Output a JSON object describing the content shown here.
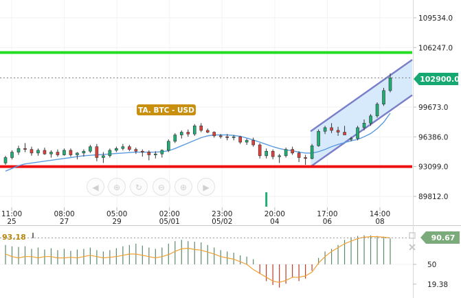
{
  "instrument_title": "TA.  BTC - USD",
  "price_tag": "102900.0",
  "osc_value": "93.18",
  "osc_tag": "90.67",
  "colors": {
    "up": "#1fae74",
    "down": "#e0413a",
    "ma": "#5a9be0",
    "resistance": "#22dd22",
    "support": "#ee1111",
    "channel_fill": "#cfe6fb",
    "channel_line": "#7a7fc9",
    "osc_line": "#f0a030",
    "title_bg": "#c9900f",
    "tag_bg": "#16a871",
    "osc_tag_bg": "#7bab7b"
  },
  "nav_icons": [
    "arrow-left-icon",
    "zoom-in-icon",
    "zoom-reset-icon",
    "zoom-out-icon",
    "zoom-in-icon",
    "arrow-right-icon"
  ],
  "chart_data": [
    {
      "type": "candlestick",
      "price_axis_ticks": [
        109534.0,
        106247.0,
        99673.0,
        96386.0,
        93099.0,
        89812.0
      ],
      "ylim": [
        88600,
        111500
      ],
      "time_axis": [
        {
          "time": "11:00",
          "date": "25"
        },
        {
          "time": "08:00",
          "date": "27"
        },
        {
          "time": "05:00",
          "date": "29"
        },
        {
          "time": "02:00",
          "date": "05/01"
        },
        {
          "time": "23:00",
          "date": "05/02"
        },
        {
          "time": "20:00",
          "date": "04"
        },
        {
          "time": "17:00",
          "date": "06"
        },
        {
          "time": "14:00",
          "date": "08"
        }
      ],
      "candles": [
        [
          93500,
          94300,
          93300,
          94100
        ],
        [
          94100,
          94900,
          93900,
          94700
        ],
        [
          94700,
          95400,
          94400,
          95100
        ],
        [
          95100,
          95700,
          94700,
          95000
        ],
        [
          95000,
          95300,
          94300,
          94600
        ],
        [
          94600,
          95100,
          94300,
          94900
        ],
        [
          94900,
          95200,
          94400,
          94500
        ],
        [
          94500,
          94900,
          94100,
          94700
        ],
        [
          94700,
          95000,
          94200,
          94400
        ],
        [
          94400,
          95100,
          94300,
          94900
        ],
        [
          94900,
          95100,
          94200,
          94400
        ],
        [
          94400,
          94700,
          93900,
          94600
        ],
        [
          94600,
          95000,
          94200,
          94800
        ],
        [
          94800,
          95500,
          94600,
          95300
        ],
        [
          95300,
          95600,
          93700,
          94100
        ],
        [
          94100,
          94700,
          93500,
          94300
        ],
        [
          94300,
          95100,
          94100,
          94900
        ],
        [
          94900,
          95300,
          94700,
          95100
        ],
        [
          95100,
          95600,
          94900,
          95300
        ],
        [
          95300,
          95500,
          94800,
          95000
        ],
        [
          95000,
          95200,
          94500,
          94800
        ],
        [
          94800,
          95000,
          94200,
          94700
        ],
        [
          94700,
          94900,
          93800,
          94400
        ],
        [
          94400,
          94800,
          94000,
          94500
        ],
        [
          94500,
          95000,
          94100,
          94900
        ],
        [
          94900,
          96100,
          94700,
          95900
        ],
        [
          95900,
          96800,
          95700,
          96600
        ],
        [
          96600,
          97100,
          96200,
          96900
        ],
        [
          96900,
          97200,
          96400,
          96700
        ],
        [
          96700,
          97800,
          96500,
          97600
        ],
        [
          97600,
          97900,
          96900,
          97100
        ],
        [
          97100,
          97300,
          96800,
          96900
        ],
        [
          96900,
          97000,
          96300,
          96500
        ],
        [
          96500,
          96700,
          96200,
          96400
        ],
        [
          96400,
          96700,
          96000,
          96300
        ],
        [
          96300,
          96600,
          96000,
          96400
        ],
        [
          96400,
          96500,
          95600,
          95800
        ],
        [
          95800,
          96200,
          95500,
          96000
        ],
        [
          96000,
          96300,
          95300,
          95500
        ],
        [
          95500,
          95700,
          94000,
          94300
        ],
        [
          94300,
          95100,
          94000,
          94800
        ],
        [
          94800,
          95000,
          93900,
          94200
        ],
        [
          94200,
          94500,
          93500,
          94300
        ],
        [
          94300,
          95200,
          94100,
          95000
        ],
        [
          95000,
          95300,
          94400,
          94600
        ],
        [
          94600,
          94800,
          93600,
          94100
        ],
        [
          94100,
          94400,
          93300,
          94000
        ],
        [
          94000,
          95600,
          93900,
          95400
        ],
        [
          95400,
          97200,
          95300,
          97000
        ],
        [
          97000,
          97600,
          96700,
          97400
        ],
        [
          97400,
          97900,
          96800,
          97100
        ],
        [
          97100,
          97500,
          96500,
          96900
        ],
        [
          96900,
          97600,
          96600,
          96600
        ],
        [
          96100,
          96400,
          95900,
          96200
        ],
        [
          96200,
          97600,
          96000,
          97400
        ],
        [
          97400,
          98300,
          97100,
          97900
        ],
        [
          97900,
          98900,
          97600,
          98700
        ],
        [
          98700,
          100200,
          98500,
          100000
        ],
        [
          100000,
          101800,
          99800,
          101500
        ],
        [
          101500,
          103400,
          101300,
          102900
        ]
      ],
      "ma_line": [
        92600,
        92900,
        93200,
        93400,
        93500,
        93600,
        93700,
        93800,
        93900,
        94000,
        94100,
        94200,
        94300,
        94350,
        94400,
        94450,
        94500,
        94550,
        94600,
        94650,
        94700,
        94700,
        94700,
        94700,
        94750,
        94850,
        95100,
        95400,
        95700,
        96000,
        96300,
        96500,
        96600,
        96600,
        96600,
        96550,
        96450,
        96250,
        96050,
        95800,
        95550,
        95300,
        95100,
        94950,
        94850,
        94700,
        94600,
        94600,
        94750,
        95000,
        95300,
        95550,
        95750,
        95950,
        96100,
        96400,
        96750,
        97300,
        98000,
        99000
      ],
      "levels": {
        "resistance": 105700,
        "support": 93100,
        "current": 102900
      },
      "channel": {
        "from_candle": 47,
        "to_candle": 59,
        "upper": [
          97000,
          104900
        ],
        "lower": [
          93100,
          101000
        ]
      },
      "volume_spike_candle": 40
    },
    {
      "type": "bar",
      "name": "oscillator",
      "ticks": [
        50,
        19.38
      ],
      "ylim": [
        0,
        100
      ],
      "midline": 50,
      "bars": [
        80,
        78,
        77,
        78,
        74,
        76,
        73,
        75,
        72,
        74,
        71,
        73,
        74,
        76,
        72,
        70,
        72,
        75,
        78,
        80,
        82,
        79,
        76,
        74,
        76,
        82,
        86,
        88,
        86,
        85,
        84,
        80,
        76,
        72,
        70,
        68,
        64,
        62,
        58,
        35,
        24,
        18,
        14,
        20,
        30,
        24,
        28,
        40,
        60,
        70,
        74,
        80,
        88,
        92,
        94,
        95,
        95,
        94,
        93,
        90
      ],
      "line": [
        66,
        62,
        60,
        62,
        62,
        60,
        62,
        62,
        60,
        60,
        61,
        60,
        62,
        64,
        62,
        60,
        61,
        62,
        64,
        66,
        66,
        64,
        62,
        60,
        62,
        65,
        70,
        74,
        75,
        73,
        72,
        69,
        66,
        62,
        60,
        58,
        54,
        50,
        42,
        36,
        30,
        24,
        22,
        25,
        30,
        30,
        32,
        38,
        52,
        62,
        70,
        76,
        82,
        86,
        90,
        92,
        93,
        93,
        92,
        91
      ]
    }
  ]
}
